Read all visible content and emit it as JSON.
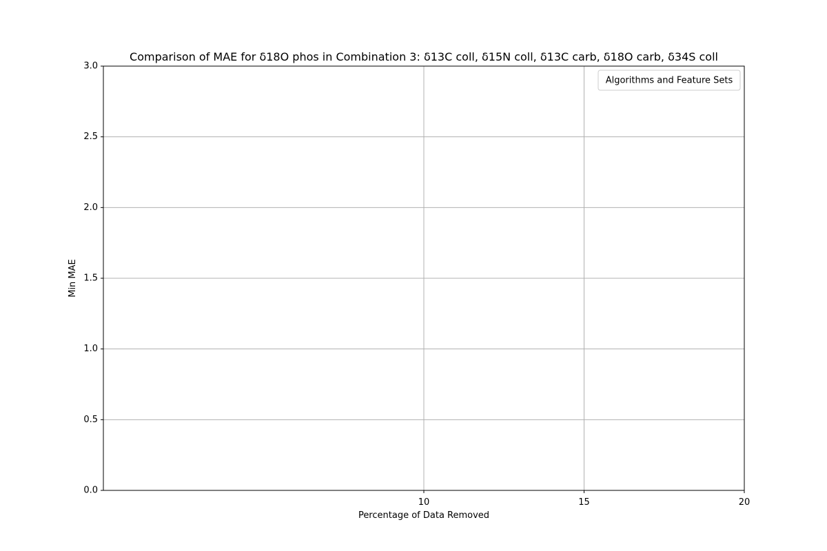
{
  "chart_data": {
    "type": "line",
    "title": "Comparison of MAE for δ18O phos in Combination 3: δ13C coll, δ15N coll, δ13C carb, δ18O carb, δ34S coll",
    "xlabel": "Percentage of Data Removed",
    "ylabel": "Min MAE",
    "x_ticks": [
      10,
      15,
      20
    ],
    "x_tick_labels": [
      "10",
      "15",
      "20"
    ],
    "xlim": [
      0,
      20
    ],
    "y_ticks": [
      0.0,
      0.5,
      1.0,
      1.5,
      2.0,
      2.5,
      3.0
    ],
    "y_tick_labels": [
      "0.0",
      "0.5",
      "1.0",
      "1.5",
      "2.0",
      "2.5",
      "3.0"
    ],
    "ylim": [
      0,
      3
    ],
    "grid": true,
    "legend": {
      "title": "Algorithms and Feature Sets",
      "placement": "top-right",
      "entries": []
    },
    "series": []
  },
  "colors": {
    "grid": "#b0b0b0",
    "axis": "#000000",
    "background": "#ffffff"
  }
}
